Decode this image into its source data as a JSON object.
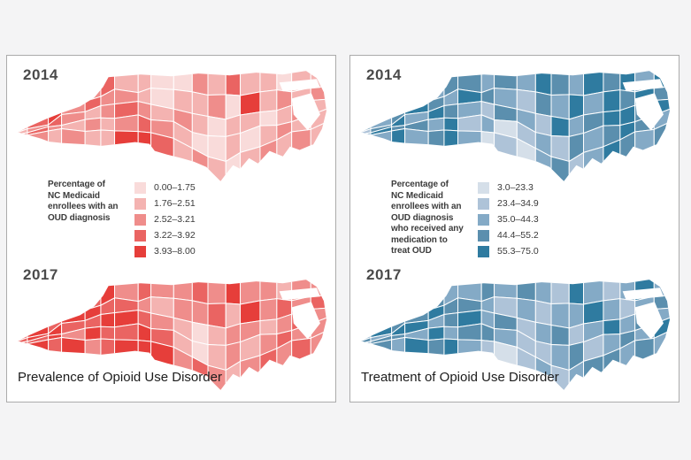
{
  "page": {
    "background": "#f4f4f5",
    "panel_border": "#ababab"
  },
  "panels": [
    {
      "caption": "Prevalence of Opioid Use Disorder",
      "legend": {
        "title_lines": [
          "Percentage of",
          "NC Medicaid",
          "enrollees with an",
          "OUD diagnosis"
        ],
        "classes": [
          "0.00–1.75",
          "1.76–2.51",
          "2.52–3.21",
          "3.22–3.92",
          "3.93–8.00"
        ],
        "colors": [
          "#f9dbda",
          "#f4b3b1",
          "#ef8d8b",
          "#ea6462",
          "#e63e3a"
        ]
      },
      "maps": [
        {
          "year": "2014"
        },
        {
          "year": "2017"
        }
      ]
    },
    {
      "caption": "Treatment of Opioid Use Disorder",
      "legend": {
        "title_lines": [
          "Percentage of",
          "NC Medicaid",
          "enrollees with an",
          "OUD diagnosis",
          "who received any",
          "medication to",
          "treat OUD"
        ],
        "classes": [
          "3.0–23.3",
          "23.4–34.9",
          "35.0–44.3",
          "44.4–55.2",
          "55.3–75.0"
        ],
        "colors": [
          "#d5dfe9",
          "#aec3d8",
          "#84aac6",
          "#5b8fae",
          "#2f7ba0"
        ]
      },
      "maps": [
        {
          "year": "2014"
        },
        {
          "year": "2017"
        }
      ]
    }
  ],
  "chart_data": [
    {
      "type": "choropleth-map",
      "region": "North Carolina counties",
      "title": "Prevalence of Opioid Use Disorder",
      "year": "2014",
      "metric": "Percentage of NC Medicaid enrollees with an OUD diagnosis",
      "breaks": [
        "0.00–1.75",
        "1.76–2.51",
        "2.52–3.21",
        "3.22–3.92",
        "3.93–8.00"
      ],
      "palette": [
        "#f9dbda",
        "#f4b3b1",
        "#ef8d8b",
        "#ea6462",
        "#e63e3a"
      ],
      "grid": {
        "cols": 18,
        "rows": 5
      },
      "cell_classes": [
        1,
        2,
        3,
        4,
        2,
        3,
        1,
        1,
        0,
        0,
        2,
        1,
        3,
        1,
        1,
        0,
        1,
        1,
        2,
        3,
        4,
        2,
        3,
        2,
        2,
        1,
        0,
        1,
        1,
        2,
        0,
        4,
        1,
        2,
        1,
        2,
        1,
        2,
        3,
        2,
        1,
        2,
        3,
        2,
        1,
        2,
        1,
        0,
        1,
        1,
        0,
        1,
        2,
        1,
        2,
        3,
        2,
        1,
        2,
        1,
        2,
        3,
        2,
        1,
        0,
        0,
        1,
        0,
        1,
        2,
        1,
        1,
        1,
        2,
        1,
        2,
        1,
        1,
        4,
        4,
        3,
        1,
        2,
        1,
        0,
        1,
        2,
        1,
        2,
        1
      ]
    },
    {
      "type": "choropleth-map",
      "region": "North Carolina counties",
      "title": "Prevalence of Opioid Use Disorder",
      "year": "2017",
      "metric": "Percentage of NC Medicaid enrollees with an OUD diagnosis",
      "breaks": [
        "0.00–1.75",
        "1.76–2.51",
        "2.52–3.21",
        "3.22–3.92",
        "3.93–8.00"
      ],
      "palette": [
        "#f9dbda",
        "#f4b3b1",
        "#ef8d8b",
        "#ea6462",
        "#e63e3a"
      ],
      "grid": {
        "cols": 18,
        "rows": 5
      },
      "cell_classes": [
        3,
        4,
        4,
        4,
        3,
        4,
        2,
        3,
        2,
        2,
        3,
        2,
        4,
        2,
        2,
        1,
        2,
        2,
        4,
        4,
        3,
        4,
        4,
        3,
        3,
        2,
        1,
        2,
        2,
        3,
        1,
        4,
        2,
        3,
        2,
        3,
        3,
        4,
        4,
        3,
        3,
        4,
        4,
        3,
        2,
        1,
        0,
        1,
        2,
        2,
        1,
        2,
        3,
        2,
        4,
        3,
        4,
        2,
        4,
        3,
        3,
        4,
        3,
        1,
        0,
        1,
        2,
        1,
        2,
        3,
        2,
        2,
        3,
        4,
        3,
        4,
        2,
        3,
        4,
        4,
        4,
        2,
        3,
        2,
        1,
        2,
        3,
        2,
        3,
        2
      ]
    },
    {
      "type": "choropleth-map",
      "region": "North Carolina counties",
      "title": "Treatment of Opioid Use Disorder",
      "year": "2014",
      "metric": "Percentage of NC Medicaid enrollees with an OUD diagnosis who received any medication to treat OUD",
      "breaks": [
        "3.0–23.3",
        "23.4–34.9",
        "35.0–44.3",
        "44.4–55.2",
        "55.3–75.0"
      ],
      "palette": [
        "#d5dfe9",
        "#aec3d8",
        "#84aac6",
        "#5b8fae",
        "#2f7ba0"
      ],
      "grid": {
        "cols": 18,
        "rows": 5
      },
      "cell_classes": [
        2,
        3,
        4,
        3,
        2,
        3,
        3,
        2,
        3,
        2,
        4,
        3,
        2,
        4,
        3,
        4,
        2,
        4,
        3,
        2,
        3,
        4,
        3,
        2,
        4,
        3,
        2,
        1,
        3,
        2,
        4,
        2,
        4,
        3,
        4,
        3,
        1,
        3,
        4,
        2,
        4,
        3,
        2,
        1,
        3,
        2,
        1,
        4,
        2,
        3,
        4,
        4,
        3,
        4,
        2,
        4,
        3,
        3,
        2,
        4,
        1,
        2,
        0,
        1,
        2,
        1,
        3,
        2,
        3,
        4,
        3,
        2,
        3,
        2,
        4,
        2,
        3,
        4,
        2,
        0,
        1,
        0,
        2,
        3,
        1,
        2,
        4,
        3,
        2,
        3
      ]
    },
    {
      "type": "choropleth-map",
      "region": "North Carolina counties",
      "title": "Treatment of Opioid Use Disorder",
      "year": "2017",
      "metric": "Percentage of NC Medicaid enrollees with an OUD diagnosis who received any medication to treat OUD",
      "breaks": [
        "3.0–23.3",
        "23.4–34.9",
        "35.0–44.3",
        "44.4–55.2",
        "55.3–75.0"
      ],
      "palette": [
        "#d5dfe9",
        "#aec3d8",
        "#84aac6",
        "#5b8fae",
        "#2f7ba0"
      ],
      "grid": {
        "cols": 18,
        "rows": 5
      },
      "cell_classes": [
        3,
        2,
        3,
        4,
        3,
        2,
        2,
        3,
        2,
        3,
        2,
        1,
        4,
        2,
        1,
        2,
        4,
        2,
        2,
        4,
        3,
        3,
        4,
        3,
        3,
        2,
        1,
        2,
        1,
        2,
        2,
        4,
        2,
        1,
        2,
        3,
        3,
        2,
        4,
        4,
        2,
        3,
        4,
        2,
        3,
        1,
        2,
        3,
        1,
        2,
        4,
        2,
        3,
        2,
        2,
        3,
        3,
        2,
        4,
        2,
        3,
        3,
        2,
        1,
        1,
        2,
        3,
        1,
        2,
        3,
        2,
        4,
        4,
        3,
        2,
        4,
        3,
        4,
        2,
        1,
        0,
        1,
        2,
        1,
        2,
        3,
        3,
        2,
        3,
        2
      ]
    }
  ]
}
